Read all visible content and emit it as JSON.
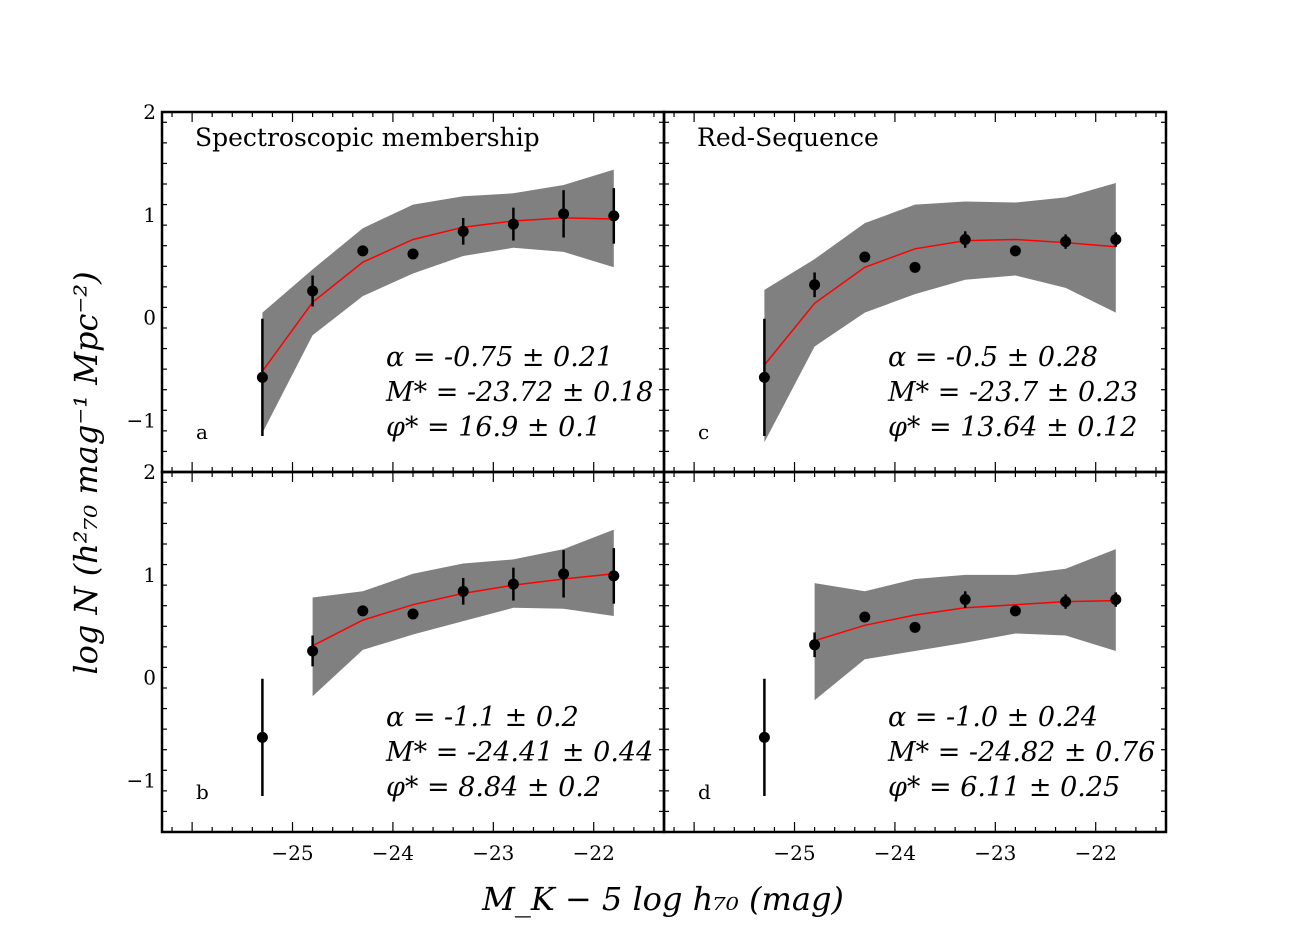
{
  "figure": {
    "xlabel": "M_K − 5 log h₇₀ (mag)",
    "ylabel": "log N (h²₇₀ mag⁻¹ Mpc⁻²)"
  },
  "chart_data": [
    {
      "type": "scatter",
      "panel": "a",
      "title": "Spectroscopic membership",
      "xlim": [
        -26.3,
        -21.3
      ],
      "ylim": [
        -1.5,
        2
      ],
      "xticks": [
        "−25",
        "−24",
        "−23",
        "−22"
      ],
      "yticks": [
        "−1",
        "0",
        "1",
        "2"
      ],
      "points": {
        "x": [
          -25.3,
          -24.8,
          -24.3,
          -23.8,
          -23.3,
          -22.8,
          -22.3,
          -21.8
        ],
        "y": [
          -0.58,
          0.26,
          0.65,
          0.62,
          0.84,
          0.91,
          1.01,
          0.99
        ],
        "yerr": [
          0.57,
          0.15,
          0.0,
          0.0,
          0.13,
          0.16,
          0.23,
          0.27
        ]
      },
      "fit": {
        "x": [
          -25.3,
          -24.8,
          -24.3,
          -23.8,
          -23.3,
          -22.8,
          -22.3,
          -21.8
        ],
        "y": [
          -0.52,
          0.15,
          0.54,
          0.76,
          0.88,
          0.94,
          0.97,
          0.96
        ]
      },
      "band": {
        "x": [
          -25.3,
          -24.8,
          -24.3,
          -23.8,
          -23.3,
          -22.8,
          -22.3,
          -21.8
        ],
        "upper": [
          0.05,
          0.47,
          0.87,
          1.1,
          1.18,
          1.21,
          1.29,
          1.44
        ],
        "lower": [
          -1.12,
          -0.17,
          0.21,
          0.43,
          0.6,
          0.68,
          0.64,
          0.49
        ]
      },
      "annotations": [
        "α = -0.75 ± 0.21",
        "M* = -23.72 ± 0.18",
        "φ* = 16.9 ± 0.1"
      ],
      "colors": {
        "band": "#808080",
        "fit": "#ff0000",
        "points": "#000000"
      }
    },
    {
      "type": "scatter",
      "panel": "c",
      "title": "Red-Sequence",
      "xlim": [
        -26.3,
        -21.3
      ],
      "ylim": [
        -1.5,
        2
      ],
      "xticks": [
        "−25",
        "−24",
        "−23",
        "−22"
      ],
      "yticks": [
        "−1",
        "0",
        "1",
        "2"
      ],
      "points": {
        "x": [
          -25.3,
          -24.8,
          -24.3,
          -23.8,
          -23.3,
          -22.8,
          -22.3,
          -21.8
        ],
        "y": [
          -0.58,
          0.32,
          0.59,
          0.49,
          0.76,
          0.65,
          0.74,
          0.76
        ],
        "yerr": [
          0.57,
          0.12,
          0.0,
          0.0,
          0.08,
          0.0,
          0.07,
          0.07
        ]
      },
      "fit": {
        "x": [
          -25.3,
          -24.8,
          -24.3,
          -23.8,
          -23.3,
          -22.8,
          -22.3,
          -21.8
        ],
        "y": [
          -0.46,
          0.14,
          0.49,
          0.67,
          0.75,
          0.76,
          0.73,
          0.69
        ]
      },
      "band": {
        "x": [
          -25.3,
          -24.8,
          -24.3,
          -23.8,
          -23.3,
          -22.8,
          -22.3,
          -21.8
        ],
        "upper": [
          0.27,
          0.57,
          0.92,
          1.1,
          1.13,
          1.12,
          1.17,
          1.31
        ],
        "lower": [
          -1.21,
          -0.28,
          0.05,
          0.23,
          0.37,
          0.41,
          0.29,
          0.05
        ]
      },
      "annotations": [
        "α = -0.5 ± 0.28",
        "M* = -23.7 ± 0.23",
        "φ* = 13.64 ± 0.12"
      ],
      "colors": {
        "band": "#808080",
        "fit": "#ff0000",
        "points": "#000000"
      }
    },
    {
      "type": "scatter",
      "panel": "b",
      "title": "",
      "xlim": [
        -26.3,
        -21.3
      ],
      "ylim": [
        -1.5,
        2
      ],
      "xticks": [
        "−25",
        "−24",
        "−23",
        "−22"
      ],
      "yticks": [
        "−1",
        "0",
        "1",
        "2"
      ],
      "points": {
        "x": [
          -25.3,
          -24.8,
          -24.3,
          -23.8,
          -23.3,
          -22.8,
          -22.3,
          -21.8
        ],
        "y": [
          -0.58,
          0.26,
          0.65,
          0.62,
          0.84,
          0.91,
          1.01,
          0.99
        ],
        "yerr": [
          0.57,
          0.15,
          0.0,
          0.0,
          0.13,
          0.16,
          0.23,
          0.27
        ]
      },
      "fit": {
        "x": [
          -24.8,
          -24.3,
          -23.8,
          -23.3,
          -22.8,
          -22.3,
          -21.8
        ],
        "y": [
          0.31,
          0.56,
          0.71,
          0.82,
          0.9,
          0.96,
          1.01
        ]
      },
      "band": {
        "x": [
          -24.8,
          -24.3,
          -23.8,
          -23.3,
          -22.8,
          -22.3,
          -21.8
        ],
        "upper": [
          0.78,
          0.84,
          1.01,
          1.11,
          1.15,
          1.25,
          1.44
        ],
        "lower": [
          -0.18,
          0.27,
          0.42,
          0.55,
          0.68,
          0.67,
          0.6
        ]
      },
      "annotations": [
        "α = -1.1 ± 0.2",
        "M* = -24.41 ± 0.44",
        "φ* = 8.84 ± 0.2"
      ],
      "colors": {
        "band": "#808080",
        "fit": "#ff0000",
        "points": "#000000"
      }
    },
    {
      "type": "scatter",
      "panel": "d",
      "title": "",
      "xlim": [
        -26.3,
        -21.3
      ],
      "ylim": [
        -1.5,
        2
      ],
      "xticks": [
        "−25",
        "−24",
        "−23",
        "−22"
      ],
      "yticks": [
        "−1",
        "0",
        "1",
        "2"
      ],
      "points": {
        "x": [
          -25.3,
          -24.8,
          -24.3,
          -23.8,
          -23.3,
          -22.8,
          -22.3,
          -21.8
        ],
        "y": [
          -0.58,
          0.32,
          0.59,
          0.49,
          0.76,
          0.65,
          0.74,
          0.76
        ],
        "yerr": [
          0.57,
          0.12,
          0.0,
          0.0,
          0.08,
          0.0,
          0.07,
          0.07
        ]
      },
      "fit": {
        "x": [
          -24.8,
          -24.3,
          -23.8,
          -23.3,
          -22.8,
          -22.3,
          -21.8
        ],
        "y": [
          0.36,
          0.51,
          0.61,
          0.68,
          0.71,
          0.74,
          0.75
        ]
      },
      "band": {
        "x": [
          -24.8,
          -24.3,
          -23.8,
          -23.3,
          -22.8,
          -22.3,
          -21.8
        ],
        "upper": [
          0.92,
          0.84,
          0.96,
          1.0,
          1.0,
          1.06,
          1.25
        ],
        "lower": [
          -0.22,
          0.18,
          0.26,
          0.34,
          0.43,
          0.41,
          0.26
        ]
      },
      "annotations": [
        "α = -1.0 ± 0.24",
        "M* = -24.82 ± 0.76",
        "φ* = 6.11 ± 0.25"
      ],
      "colors": {
        "band": "#808080",
        "fit": "#ff0000",
        "points": "#000000"
      }
    }
  ]
}
